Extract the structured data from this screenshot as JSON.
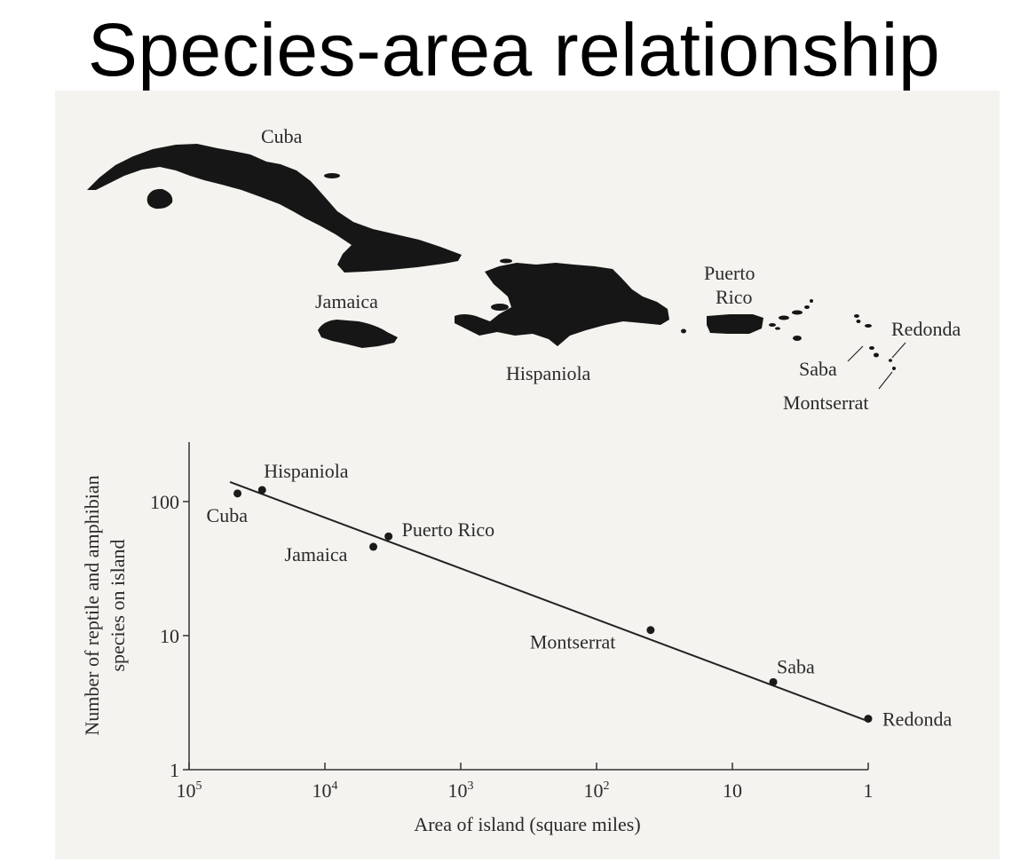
{
  "title": "Species-area relationship",
  "map": {
    "island_labels": {
      "cuba": "Cuba",
      "jamaica": "Jamaica",
      "hispaniola": "Hispaniola",
      "puerto_rico_line1": "Puerto",
      "puerto_rico_line2": "Rico",
      "redonda": "Redonda",
      "saba": "Saba",
      "montserrat": "Montserrat"
    },
    "land_color": "#161616"
  },
  "chart_data": {
    "type": "scatter",
    "xlabel": "Area of island (square miles)",
    "ylabel_line1": "Number of reptile and amphibian",
    "ylabel_line2": "species on island",
    "x_scale": "log",
    "x_reversed": true,
    "y_scale": "log",
    "xlim": [
      100000,
      1
    ],
    "ylim": [
      1,
      300
    ],
    "x_ticks": [
      {
        "value": 100000,
        "base": "10",
        "exp": "5"
      },
      {
        "value": 10000,
        "base": "10",
        "exp": "4"
      },
      {
        "value": 1000,
        "base": "10",
        "exp": "3"
      },
      {
        "value": 100,
        "base": "10",
        "exp": "2"
      },
      {
        "value": 10,
        "base": "10",
        "exp": ""
      },
      {
        "value": 1,
        "base": "1",
        "exp": ""
      }
    ],
    "y_ticks": [
      {
        "value": 1,
        "label": "1"
      },
      {
        "value": 10,
        "label": "10"
      },
      {
        "value": 100,
        "label": "100"
      }
    ],
    "points": [
      {
        "name": "Cuba",
        "x": 44000,
        "y": 115
      },
      {
        "name": "Hispaniola",
        "x": 29000,
        "y": 122
      },
      {
        "name": "Jamaica",
        "x": 4400,
        "y": 46
      },
      {
        "name": "Puerto Rico",
        "x": 3400,
        "y": 55
      },
      {
        "name": "Montserrat",
        "x": 40,
        "y": 11
      },
      {
        "name": "Saba",
        "x": 5,
        "y": 4.5
      },
      {
        "name": "Redonda",
        "x": 1,
        "y": 2.4
      }
    ],
    "fit_line": {
      "x": [
        50000,
        1
      ],
      "y": [
        140,
        2.3
      ]
    }
  }
}
